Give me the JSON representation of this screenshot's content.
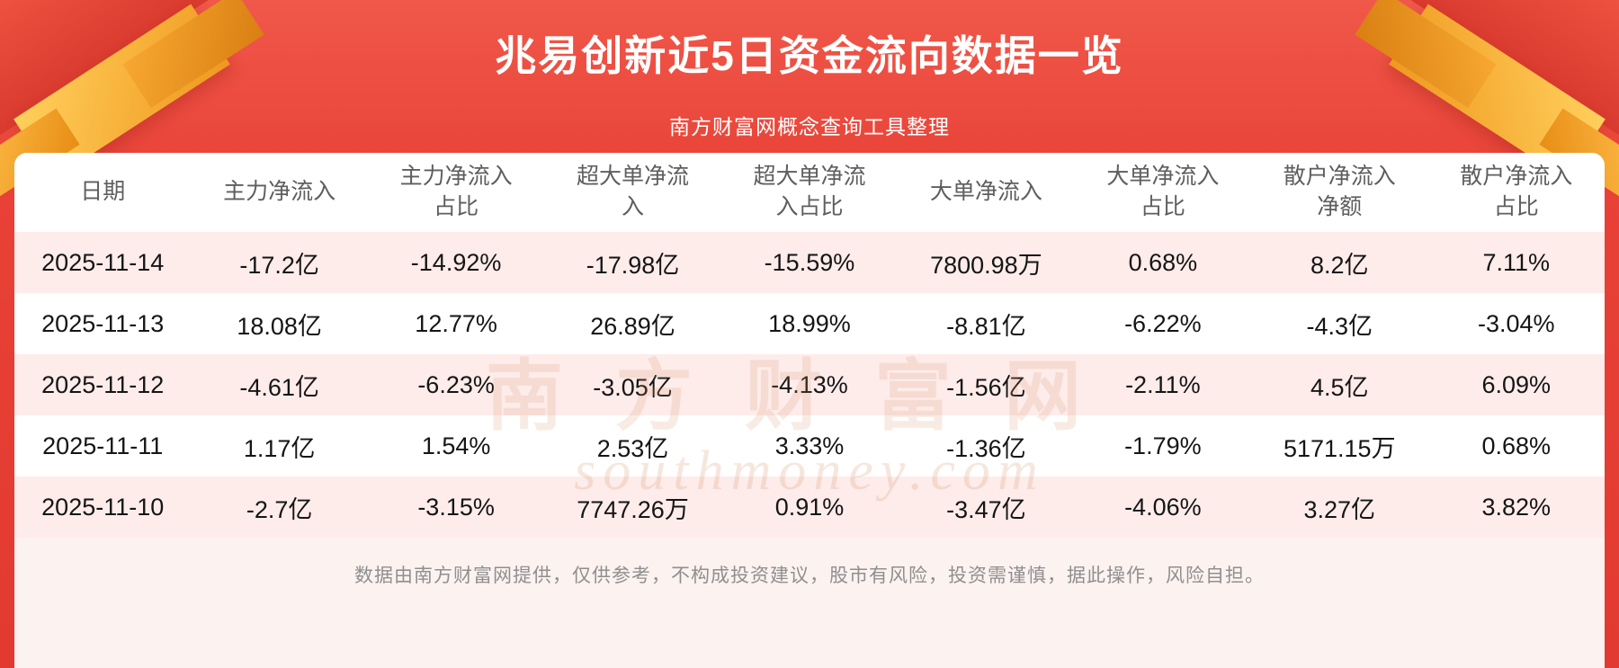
{
  "chart_data": {
    "type": "table",
    "title": "兆易创新近5日资金流向数据一览",
    "subtitle": "南方财富网概念查询工具整理",
    "columns": [
      "日期",
      "主力净流入",
      "主力净流入占比",
      "超大单净流入",
      "超大单净流入占比",
      "大单净流入",
      "大单净流入占比",
      "散户净流入净额",
      "散户净流入占比"
    ],
    "rows": [
      [
        "2025-11-14",
        "-17.2亿",
        "-14.92%",
        "-17.98亿",
        "-15.59%",
        "7800.98万",
        "0.68%",
        "8.2亿",
        "7.11%"
      ],
      [
        "2025-11-13",
        "18.08亿",
        "12.77%",
        "26.89亿",
        "18.99%",
        "-8.81亿",
        "-6.22%",
        "-4.3亿",
        "-3.04%"
      ],
      [
        "2025-11-12",
        "-4.61亿",
        "-6.23%",
        "-3.05亿",
        "-4.13%",
        "-1.56亿",
        "-2.11%",
        "4.5亿",
        "6.09%"
      ],
      [
        "2025-11-11",
        "1.17亿",
        "1.54%",
        "2.53亿",
        "3.33%",
        "-1.36亿",
        "-1.79%",
        "5171.15万",
        "0.68%"
      ],
      [
        "2025-11-10",
        "-2.7亿",
        "-3.15%",
        "7747.26万",
        "0.91%",
        "-3.47亿",
        "-4.06%",
        "3.27亿",
        "3.82%"
      ]
    ]
  },
  "watermark": {
    "text": "南方财富网",
    "domain": "southmoney.com"
  },
  "footer": {
    "disclaimer": "数据由南方财富网提供，仅供参考，不构成投资建议，股市有风险，投资需谨慎，据此操作，风险自担。"
  },
  "colors": {
    "background_red": "#e84136",
    "gold_ribbon": "#f0981f",
    "row_alt_pink": "#fdecea",
    "card_background": "#fcf2f0",
    "header_text": "#5e5e5e",
    "body_text": "#151515",
    "footer_text": "#8f8f8f",
    "title_text": "#ffffff"
  }
}
